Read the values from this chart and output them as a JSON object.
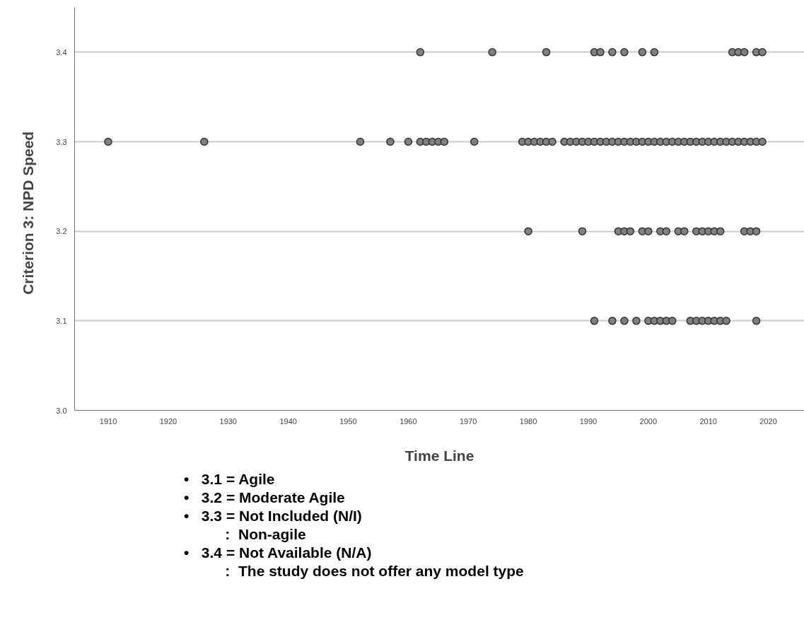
{
  "chart_data": {
    "type": "scatter",
    "xlabel": "Time Line",
    "ylabel": "Criterion 3:   NPD Speed",
    "xlim": [
      1904.4,
      2026
    ],
    "xticks": [
      1910,
      1920,
      1930,
      1940,
      1950,
      1960,
      1970,
      1980,
      1990,
      2000,
      2010,
      2020
    ],
    "ylim": [
      3.0,
      3.45
    ],
    "yticks": [
      {
        "value": 3.0,
        "label": "3.0"
      },
      {
        "value": 3.1,
        "label": "3.1"
      },
      {
        "value": 3.2,
        "label": "3.2"
      },
      {
        "value": 3.3,
        "label": "3.3"
      },
      {
        "value": 3.4,
        "label": "3.4"
      }
    ],
    "grid": "y",
    "marker": "circle",
    "series": [
      {
        "color": "#808080",
        "x": [
          1962,
          1974,
          1983,
          1991,
          1992,
          1994,
          1996,
          1999,
          2001,
          2014,
          2015,
          2016,
          2018,
          2019,
          1910,
          1926,
          1952,
          1957,
          1960,
          1962,
          1963,
          1964,
          1965,
          1966,
          1971,
          1979,
          1980,
          1981,
          1982,
          1983,
          1984,
          1986,
          1987,
          1988,
          1989,
          1990,
          1991,
          1992,
          1993,
          1994,
          1995,
          1996,
          1997,
          1998,
          1999,
          2000,
          2001,
          2002,
          2003,
          2004,
          2005,
          2006,
          2007,
          2008,
          2009,
          2010,
          2011,
          2012,
          2013,
          2014,
          2015,
          2016,
          2017,
          2018,
          2019,
          1980,
          1989,
          1995,
          1996,
          1997,
          1999,
          2000,
          2002,
          2003,
          2005,
          2006,
          2008,
          2009,
          2010,
          2011,
          2012,
          2016,
          2017,
          2018,
          1991,
          1994,
          1996,
          1998,
          2000,
          2001,
          2002,
          2003,
          2004,
          2007,
          2008,
          2009,
          2010,
          2011,
          2012,
          2013,
          2018
        ],
        "values": [
          3.4,
          3.4,
          3.4,
          3.4,
          3.4,
          3.4,
          3.4,
          3.4,
          3.4,
          3.4,
          3.4,
          3.4,
          3.4,
          3.4,
          3.3,
          3.3,
          3.3,
          3.3,
          3.3,
          3.3,
          3.3,
          3.3,
          3.3,
          3.3,
          3.3,
          3.3,
          3.3,
          3.3,
          3.3,
          3.3,
          3.3,
          3.3,
          3.3,
          3.3,
          3.3,
          3.3,
          3.3,
          3.3,
          3.3,
          3.3,
          3.3,
          3.3,
          3.3,
          3.3,
          3.3,
          3.3,
          3.3,
          3.3,
          3.3,
          3.3,
          3.3,
          3.3,
          3.3,
          3.3,
          3.3,
          3.3,
          3.3,
          3.3,
          3.3,
          3.3,
          3.3,
          3.3,
          3.3,
          3.3,
          3.3,
          3.2,
          3.2,
          3.2,
          3.2,
          3.2,
          3.2,
          3.2,
          3.2,
          3.2,
          3.2,
          3.2,
          3.2,
          3.2,
          3.2,
          3.2,
          3.2,
          3.2,
          3.2,
          3.2,
          3.1,
          3.1,
          3.1,
          3.1,
          3.1,
          3.1,
          3.1,
          3.1,
          3.1,
          3.1,
          3.1,
          3.1,
          3.1,
          3.1,
          3.1,
          3.1,
          3.1
        ]
      }
    ],
    "annotations": [
      "•   3.1 = Agile",
      "•   3.2 = Moderate Agile",
      "•   3.3 = Not Included (N/I)",
      "          :  Non-agile",
      "•   3.4 = Not Available (N/A)",
      "          :  The study does not offer any model type"
    ]
  }
}
